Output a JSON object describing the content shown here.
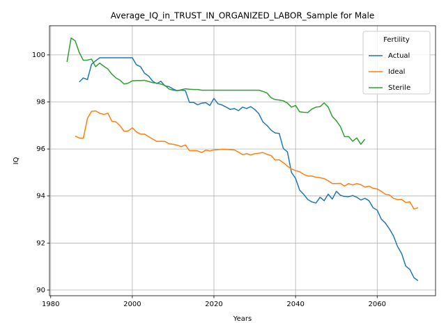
{
  "chart_data": {
    "type": "line",
    "title": "Average_IQ_in_TRUST_IN_ORGANIZED_LABOR_Sample for Male",
    "xlabel": "Years",
    "ylabel": "IQ",
    "legend_title": "Fertility",
    "legend_loc": "upper right",
    "grid": true,
    "xlim": [
      1979.7,
      2074.3
    ],
    "xticks": [
      1980,
      2000,
      2020,
      2040,
      2060
    ],
    "ylim": [
      89.76,
      101.24
    ],
    "yticks": [
      90,
      92,
      94,
      96,
      98,
      100
    ],
    "x": [
      1984,
      1985,
      1986,
      1987,
      1988,
      1989,
      1990,
      1991,
      1992,
      1993,
      1994,
      1995,
      1996,
      1997,
      1998,
      1999,
      2000,
      2001,
      2002,
      2003,
      2004,
      2005,
      2006,
      2007,
      2008,
      2009,
      2010,
      2011,
      2012,
      2013,
      2014,
      2015,
      2016,
      2017,
      2018,
      2019,
      2020,
      2021,
      2022,
      2023,
      2024,
      2025,
      2026,
      2027,
      2028,
      2029,
      2030,
      2031,
      2032,
      2033,
      2034,
      2035,
      2036,
      2037,
      2038,
      2039,
      2040,
      2041,
      2042,
      2043,
      2044,
      2045,
      2046,
      2047,
      2048,
      2049,
      2050,
      2051,
      2052,
      2053,
      2054,
      2055,
      2056,
      2057,
      2058,
      2059,
      2060,
      2061,
      2062,
      2063,
      2064,
      2065,
      2066,
      2067,
      2068,
      2069,
      2070
    ],
    "series": [
      {
        "name": "Actual",
        "color": "#1f77b4",
        "values": [
          null,
          null,
          null,
          98.85,
          99.02,
          98.95,
          99.6,
          99.75,
          99.88,
          99.88,
          99.88,
          99.88,
          99.88,
          99.88,
          99.88,
          99.88,
          99.88,
          99.58,
          99.5,
          99.22,
          99.1,
          98.88,
          98.78,
          98.88,
          98.68,
          98.65,
          98.55,
          98.48,
          98.5,
          98.48,
          97.98,
          97.98,
          97.88,
          97.95,
          97.97,
          97.85,
          98.15,
          97.92,
          97.87,
          97.78,
          97.68,
          97.72,
          97.63,
          97.78,
          97.72,
          97.8,
          97.68,
          97.5,
          97.15,
          97.0,
          96.8,
          96.68,
          96.66,
          96.02,
          95.88,
          95.0,
          94.75,
          94.25,
          94.07,
          93.85,
          93.75,
          93.7,
          93.95,
          93.8,
          94.08,
          93.87,
          94.2,
          94.03,
          93.98,
          93.97,
          94.02,
          93.95,
          93.83,
          93.9,
          93.8,
          93.5,
          93.4,
          93.02,
          92.85,
          92.6,
          92.3,
          91.85,
          91.55,
          91.02,
          90.88,
          90.53,
          90.4
        ]
      },
      {
        "name": "Ideal",
        "color": "#ff7f0e",
        "values": [
          null,
          null,
          96.55,
          96.47,
          96.46,
          97.3,
          97.6,
          97.62,
          97.52,
          97.47,
          97.52,
          97.18,
          97.15,
          96.98,
          96.75,
          96.77,
          96.9,
          96.73,
          96.63,
          96.63,
          96.52,
          96.42,
          96.32,
          96.33,
          96.32,
          96.22,
          96.2,
          96.16,
          96.1,
          96.17,
          95.93,
          95.93,
          95.92,
          95.85,
          95.95,
          95.92,
          95.96,
          95.97,
          95.99,
          95.98,
          95.97,
          95.96,
          95.87,
          95.76,
          95.8,
          95.75,
          95.8,
          95.82,
          95.85,
          95.77,
          95.72,
          95.53,
          95.54,
          95.42,
          95.27,
          95.15,
          95.08,
          95.03,
          94.92,
          94.85,
          94.85,
          94.8,
          94.78,
          94.74,
          94.65,
          94.53,
          94.53,
          94.54,
          94.42,
          94.53,
          94.47,
          94.53,
          94.48,
          94.38,
          94.42,
          94.33,
          94.3,
          94.2,
          94.07,
          94.05,
          93.9,
          93.85,
          93.85,
          93.73,
          93.75,
          93.45,
          93.5
        ]
      },
      {
        "name": "Sterile",
        "color": "#2ca02c",
        "values": [
          99.7,
          100.72,
          100.6,
          100.1,
          99.77,
          99.78,
          99.82,
          99.5,
          99.65,
          99.52,
          99.4,
          99.18,
          99.02,
          98.92,
          98.76,
          98.8,
          98.9,
          98.91,
          98.91,
          98.92,
          98.87,
          98.82,
          98.8,
          98.76,
          98.7,
          98.55,
          98.5,
          98.48,
          98.52,
          98.56,
          98.54,
          98.53,
          98.53,
          98.5,
          98.5,
          98.5,
          98.5,
          98.5,
          98.5,
          98.5,
          98.5,
          98.5,
          98.5,
          98.5,
          98.5,
          98.5,
          98.5,
          98.5,
          98.45,
          98.38,
          98.18,
          98.1,
          98.08,
          98.05,
          97.95,
          97.78,
          97.85,
          97.58,
          97.56,
          97.55,
          97.7,
          97.78,
          97.8,
          97.96,
          97.78,
          97.38,
          97.2,
          96.95,
          96.52,
          96.53,
          96.33,
          96.47,
          96.2,
          96.42,
          null,
          null,
          null,
          null,
          null,
          null,
          null,
          null,
          null,
          null,
          null,
          null,
          null
        ]
      }
    ]
  }
}
